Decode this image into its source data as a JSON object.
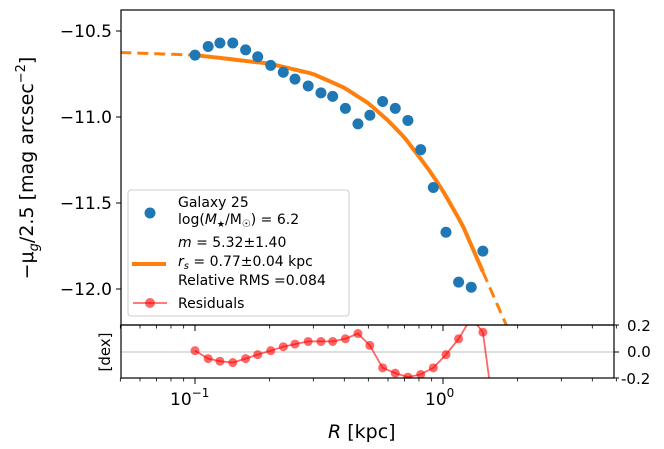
{
  "chart_data": [
    {
      "type": "scatter",
      "panel": "main",
      "title": "",
      "xlabel": "R [kpc]",
      "ylabel": "−μ_g/2.5 [mag arcsec^−2]",
      "xscale": "log",
      "xlim": [
        0.05,
        5.0
      ],
      "ylim": [
        -12.21,
        -10.38
      ],
      "yticks": [
        -10.5,
        -11.0,
        -11.5,
        -12.0
      ],
      "ytick_labels": [
        "−10.5",
        "−11.0",
        "−11.5",
        "−12.0"
      ],
      "xticks": [
        0.1,
        1.0
      ],
      "xtick_labels": [
        "10^−1",
        "10^0"
      ],
      "grid": false,
      "legend_position": "lower left",
      "series": [
        {
          "name": "Galaxy 25 log(M★/M☉) = 6.2",
          "kind": "scatter",
          "color": "#1f77b4",
          "x": [
            0.1,
            0.113,
            0.126,
            0.142,
            0.16,
            0.179,
            0.202,
            0.227,
            0.253,
            0.286,
            0.322,
            0.359,
            0.404,
            0.454,
            0.507,
            0.571,
            0.642,
            0.722,
            0.813,
            0.914,
            1.028,
            1.156,
            1.3,
            1.448
          ],
          "values": [
            -10.64,
            -10.59,
            -10.57,
            -10.57,
            -10.61,
            -10.65,
            -10.7,
            -10.74,
            -10.78,
            -10.82,
            -10.86,
            -10.88,
            -10.95,
            -11.04,
            -10.99,
            -10.91,
            -10.95,
            -11.02,
            -11.19,
            -11.41,
            -11.67,
            -11.96,
            -11.99,
            -11.78
          ]
        },
        {
          "name": "m = 5.32±1.40, r_s = 0.77±0.04 kpc, Relative RMS = 0.084",
          "kind": "line",
          "color": "#ff7f0e",
          "fit": {
            "m": 5.32,
            "m_err": 1.4,
            "r_s_kpc": 0.77,
            "r_s_err": 0.04,
            "relative_rms": 0.084
          },
          "solid_range": [
            0.1,
            1.448
          ],
          "dashed_range": [
            0.05,
            1.8
          ],
          "x": [
            0.05,
            0.1,
            0.2,
            0.3,
            0.4,
            0.5,
            0.6,
            0.7,
            0.8,
            0.9,
            1.0,
            1.2,
            1.448,
            1.8
          ],
          "values": [
            -10.625,
            -10.64,
            -10.69,
            -10.75,
            -10.83,
            -10.92,
            -11.02,
            -11.12,
            -11.23,
            -11.33,
            -11.43,
            -11.63,
            -11.9,
            -12.21
          ]
        }
      ]
    },
    {
      "type": "line",
      "panel": "residuals",
      "ylabel": "[dex]",
      "xscale": "log",
      "xlim": [
        0.05,
        5.0
      ],
      "ylim": [
        -0.2,
        0.2
      ],
      "yticks": [
        0.2,
        0.0,
        -0.2
      ],
      "ytick_labels": [
        "0.2",
        "0.0",
        "-0.2"
      ],
      "ytick_side": "right",
      "zero_line": true,
      "series": [
        {
          "name": "Residuals",
          "color": "#ff0000",
          "alpha": 0.6,
          "x": [
            0.1,
            0.113,
            0.126,
            0.142,
            0.16,
            0.179,
            0.202,
            0.227,
            0.253,
            0.286,
            0.322,
            0.359,
            0.404,
            0.454,
            0.507,
            0.571,
            0.642,
            0.722,
            0.813,
            0.914,
            1.028,
            1.156,
            1.3,
            1.448,
            1.6
          ],
          "values": [
            0.01,
            -0.05,
            -0.07,
            -0.08,
            -0.05,
            -0.02,
            0.01,
            0.04,
            0.06,
            0.08,
            0.08,
            0.08,
            0.1,
            0.14,
            0.05,
            -0.12,
            -0.16,
            -0.19,
            -0.17,
            -0.12,
            -0.02,
            0.1,
            0.26,
            0.15,
            -0.45
          ]
        }
      ]
    }
  ],
  "labels": {
    "ylabel_main": "−μ",
    "ylabel_sub": "g",
    "ylabel_rest": "/2.5 [mag arcsec",
    "ylabel_sup": "−2",
    "ylabel_close": "]",
    "ylabel_resid": "[dex]",
    "xlabel_italic": "R",
    "xlabel_rest": " [kpc]",
    "ytick_main": [
      "−10.5",
      "−11.0",
      "−11.5",
      "−12.0"
    ],
    "ytick_resid": [
      "0.2",
      "0.0",
      "-0.2"
    ],
    "xtick_base": [
      "10",
      "10"
    ],
    "xtick_exp": [
      "−1",
      "0"
    ]
  },
  "legend": {
    "galaxy_line1": "Galaxy 25",
    "galaxy_line2_pre": "log(",
    "galaxy_line2_M": "M",
    "galaxy_line2_star": "★",
    "galaxy_line2_mid": "/M",
    "galaxy_line2_sun": "☉",
    "galaxy_line2_post": ") = 6.2",
    "fit_line1_m": "m",
    "fit_line1_rest": " = 5.32±1.40",
    "fit_line2_r": "r",
    "fit_line2_sub": "s",
    "fit_line2_rest": " = 0.77±0.04 kpc",
    "fit_line3": "Relative RMS =0.084",
    "residuals": "Residuals"
  },
  "colors": {
    "data": "#1f77b4",
    "fit": "#ff7f0e",
    "residual": "#ff0000",
    "zero_line": "#cccccc",
    "axes": "#000000"
  }
}
